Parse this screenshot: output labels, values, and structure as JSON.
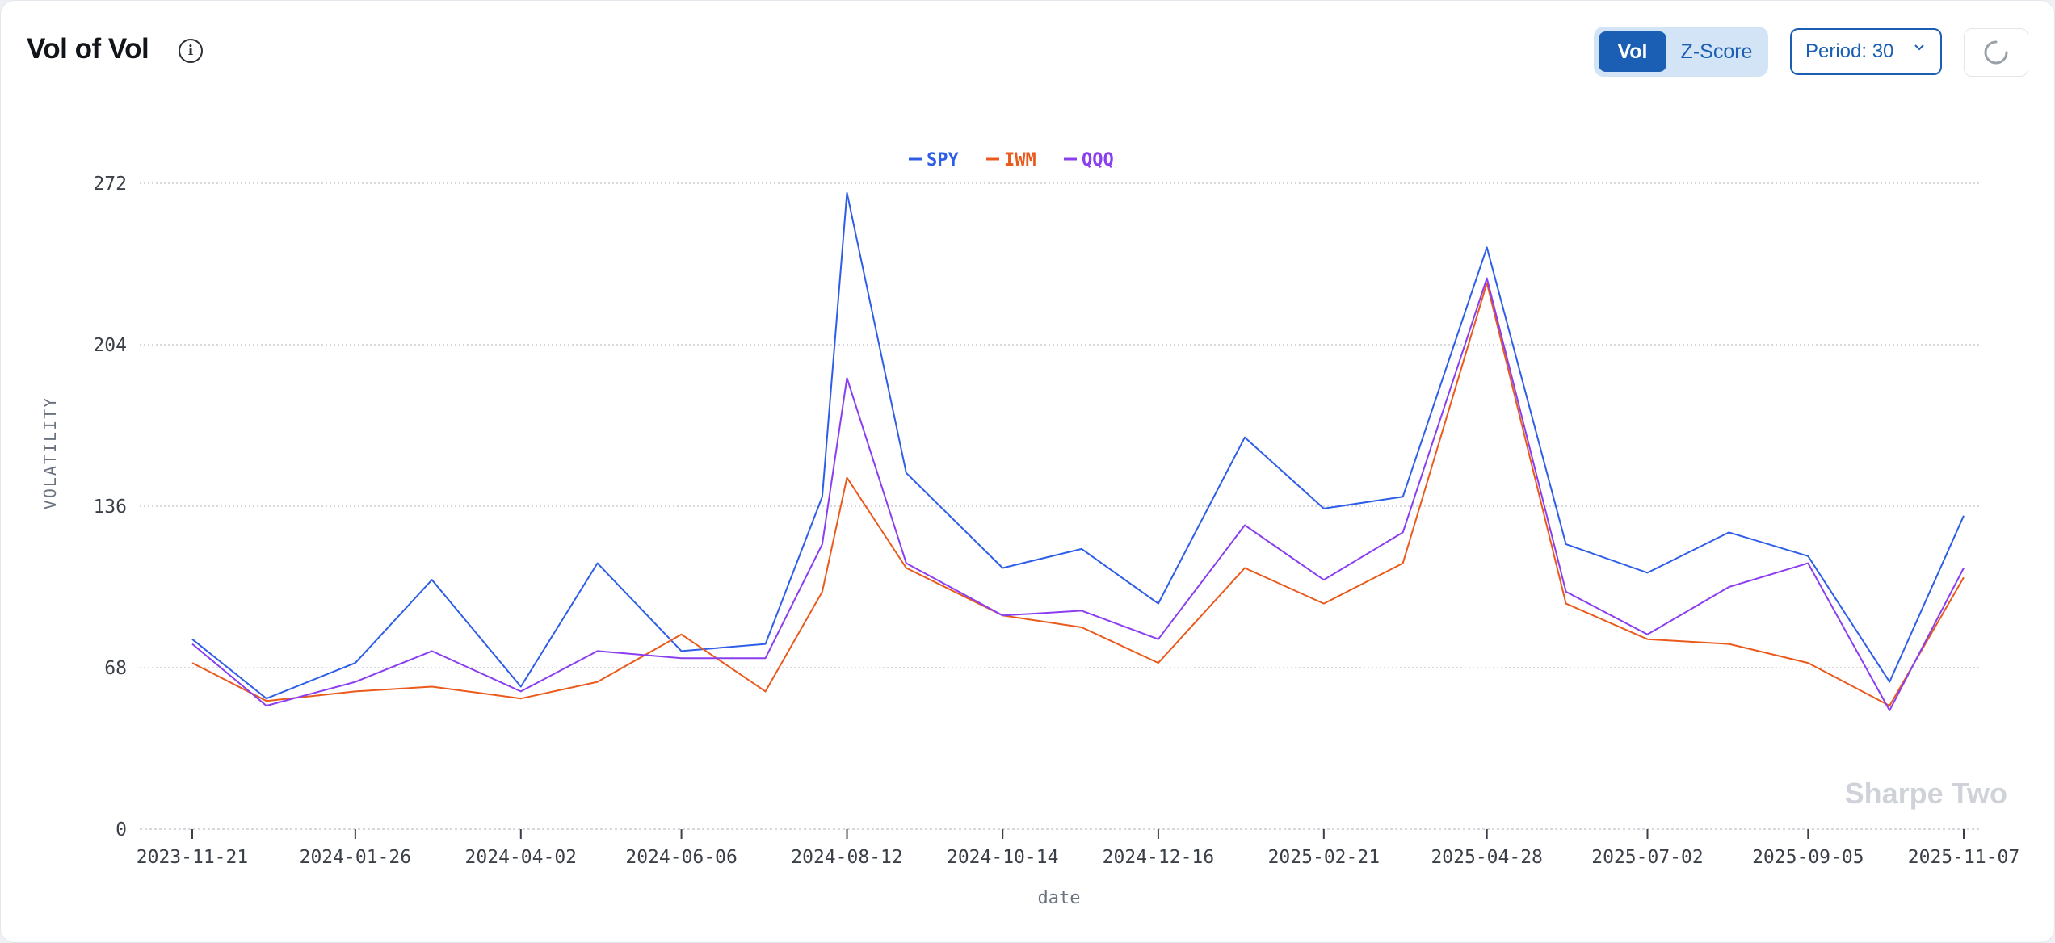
{
  "header": {
    "title": "Vol of Vol",
    "info_icon": "info-circle-icon",
    "toggle": {
      "vol_label": "Vol",
      "zscore_label": "Z-Score",
      "selected": "Vol"
    },
    "period_select": {
      "label": "Period: 30",
      "icon": "chevron-down-icon"
    },
    "refresh_icon": "loading-spinner-icon"
  },
  "colors": {
    "SPY": "#2e5ee8",
    "IWM": "#ea5a1c",
    "QQQ": "#8a3ef0",
    "accent": "#1a5fb4"
  },
  "watermark": "Sharpe Two",
  "chart_data": {
    "type": "line",
    "xlabel": "date",
    "ylabel": "VOLATILITY",
    "ylim": [
      0,
      272
    ],
    "yticks": [
      0,
      68,
      136,
      204,
      272
    ],
    "grid": true,
    "legend_position": "top-center",
    "x_tick_labels": [
      "2023-11-21",
      "2024-01-26",
      "2024-04-02",
      "2024-06-06",
      "2024-08-12",
      "2024-10-14",
      "2024-12-16",
      "2025-02-21",
      "2025-04-28",
      "2025-07-02",
      "2025-09-05",
      "2025-11-07"
    ],
    "x": [
      "2023-11-21",
      "2023-12-21",
      "2024-01-26",
      "2024-02-26",
      "2024-04-02",
      "2024-05-03",
      "2024-06-06",
      "2024-07-10",
      "2024-08-02",
      "2024-08-12",
      "2024-09-05",
      "2024-10-14",
      "2024-11-15",
      "2024-12-16",
      "2025-01-20",
      "2025-02-21",
      "2025-03-25",
      "2025-04-28",
      "2025-05-30",
      "2025-07-02",
      "2025-08-04",
      "2025-09-05",
      "2025-10-08",
      "2025-11-07"
    ],
    "series": [
      {
        "name": "SPY",
        "values": [
          80,
          55,
          70,
          105,
          60,
          112,
          75,
          78,
          140,
          268,
          150,
          110,
          118,
          95,
          165,
          135,
          140,
          245,
          120,
          108,
          125,
          115,
          62,
          132
        ]
      },
      {
        "name": "IWM",
        "values": [
          70,
          54,
          58,
          60,
          55,
          62,
          82,
          58,
          100,
          148,
          110,
          90,
          85,
          70,
          110,
          95,
          112,
          230,
          95,
          80,
          78,
          70,
          52,
          106
        ]
      },
      {
        "name": "QQQ",
        "values": [
          78,
          52,
          62,
          75,
          58,
          75,
          72,
          72,
          120,
          190,
          112,
          90,
          92,
          80,
          128,
          105,
          125,
          232,
          100,
          82,
          102,
          112,
          50,
          110
        ]
      }
    ]
  }
}
